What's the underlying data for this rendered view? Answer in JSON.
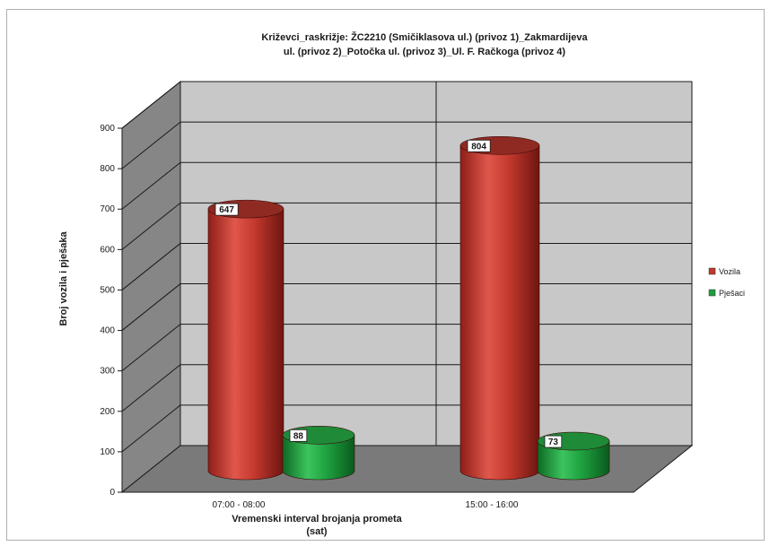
{
  "chart_data": {
    "type": "bar",
    "title_lines": [
      "Križevci_raskrižje: ŽC2210 (Smičiklasova ul.) (privoz 1)_Zakmardijeva",
      "ul. (privoz 2)_Potočka ul. (privoz 3)_Ul. F. Račkoga (privoz 4)"
    ],
    "categories": [
      "07:00 - 08:00",
      "15:00 - 16:00"
    ],
    "series": [
      {
        "name": "Vozila",
        "values": [
          647,
          804
        ],
        "color": "#c0392b"
      },
      {
        "name": "Pješaci",
        "values": [
          88,
          73
        ],
        "color": "#1e9e3e"
      }
    ],
    "xlabel_lines": [
      "Vremenski interval brojanja prometa",
      "(sat)"
    ],
    "ylabel": "Broj vozila i pješaka",
    "ylim": [
      0,
      900
    ],
    "yticks": [
      0,
      100,
      200,
      300,
      400,
      500,
      600,
      700,
      800,
      900
    ],
    "grid": true,
    "legend_position": "right",
    "style": "3d-cylinder"
  }
}
